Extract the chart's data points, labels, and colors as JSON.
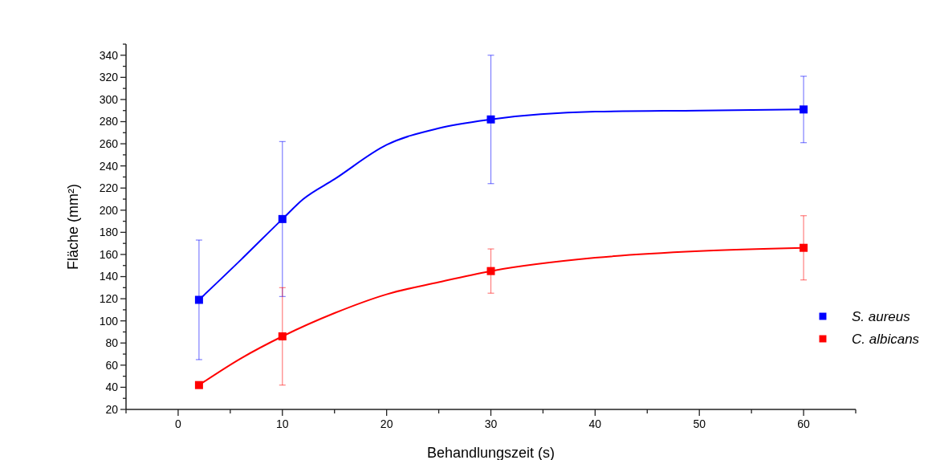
{
  "chart_data": {
    "type": "scatter",
    "xlabel": "Behandlungszeit (s)",
    "ylabel": "Fläche (mm²)",
    "xlim": [
      -5,
      65
    ],
    "xticks": [
      {
        "value": -5,
        "label": null
      },
      0,
      {
        "value": 5,
        "label": null
      },
      10,
      {
        "value": 15,
        "label": null
      },
      20,
      {
        "value": 25,
        "label": null
      },
      30,
      {
        "value": 35,
        "label": null
      },
      40,
      {
        "value": 45,
        "label": null
      },
      50,
      {
        "value": 55,
        "label": null
      },
      60,
      {
        "value": 65,
        "label": null
      }
    ],
    "ylim": [
      20,
      350
    ],
    "yticks": [
      20,
      {
        "value": 30,
        "label": null
      },
      40,
      {
        "value": 50,
        "label": null
      },
      60,
      {
        "value": 70,
        "label": null
      },
      80,
      {
        "value": 90,
        "label": null
      },
      100,
      {
        "value": 110,
        "label": null
      },
      120,
      {
        "value": 130,
        "label": null
      },
      140,
      {
        "value": 150,
        "label": null
      },
      160,
      {
        "value": 170,
        "label": null
      },
      180,
      {
        "value": 190,
        "label": null
      },
      200,
      {
        "value": 210,
        "label": null
      },
      220,
      {
        "value": 230,
        "label": null
      },
      240,
      {
        "value": 250,
        "label": null
      },
      260,
      {
        "value": 270,
        "label": null
      },
      280,
      {
        "value": 290,
        "label": null
      },
      300,
      {
        "value": 310,
        "label": null
      },
      320,
      {
        "value": 330,
        "label": null
      },
      340,
      {
        "value": 350,
        "label": null
      }
    ],
    "grid": false,
    "legend": "right",
    "marker": "square",
    "series": [
      {
        "type": "line",
        "color": "#0000ff",
        "marker": "none",
        "line_style": "solid",
        "x": [
          2,
          6,
          10,
          12,
          15,
          20,
          25,
          30,
          40,
          50,
          60
        ],
        "values": [
          119,
          155,
          192,
          210,
          228,
          259,
          274,
          282,
          289,
          290,
          291
        ]
      },
      {
        "type": "line",
        "color": "#ff0000",
        "marker": "none",
        "line_style": "solid",
        "x": [
          2,
          6,
          10,
          15,
          20,
          25,
          30,
          40,
          50,
          60
        ],
        "values": [
          42,
          66,
          86,
          107,
          124,
          135,
          145,
          157,
          163,
          166
        ]
      },
      {
        "name": "S. aureus",
        "color": "#0000ff",
        "x": [
          2,
          10,
          30,
          60
        ],
        "values": [
          119,
          192,
          282,
          291
        ],
        "errors": [
          54,
          70,
          58,
          30
        ]
      },
      {
        "name": "C. albicans",
        "color": "#ff0000",
        "x": [
          2,
          10,
          30,
          60
        ],
        "values": [
          42,
          86,
          145,
          166
        ],
        "errors": [
          null,
          44,
          20,
          29
        ]
      }
    ]
  }
}
